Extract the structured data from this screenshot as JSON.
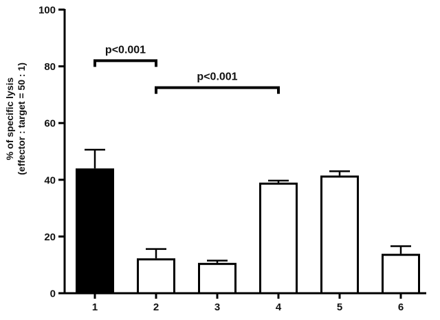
{
  "chart_data": {
    "type": "bar",
    "title": "",
    "xlabel": "",
    "ylabel": "% of specific lysis",
    "ylabel_line2": "(effector : target = 50 : 1)",
    "ylim": [
      0,
      100
    ],
    "yticks": [
      0,
      20,
      40,
      60,
      80,
      100
    ],
    "categories": [
      "1",
      "2",
      "3",
      "4",
      "5",
      "6"
    ],
    "values": [
      44,
      12.3,
      10.7,
      39,
      41.5,
      13.9
    ],
    "errors": [
      6.6,
      3.3,
      0.8,
      0.7,
      1.5,
      2.7
    ],
    "fills": [
      "#000000",
      "#ffffff",
      "#ffffff",
      "#ffffff",
      "#ffffff",
      "#ffffff"
    ],
    "grid": false,
    "annotations": [
      {
        "text": "p<0.001",
        "from": "1",
        "to": "2",
        "y": 82
      },
      {
        "text": "p<0.001",
        "from": "2",
        "to": "4",
        "y": 72.5
      }
    ]
  }
}
